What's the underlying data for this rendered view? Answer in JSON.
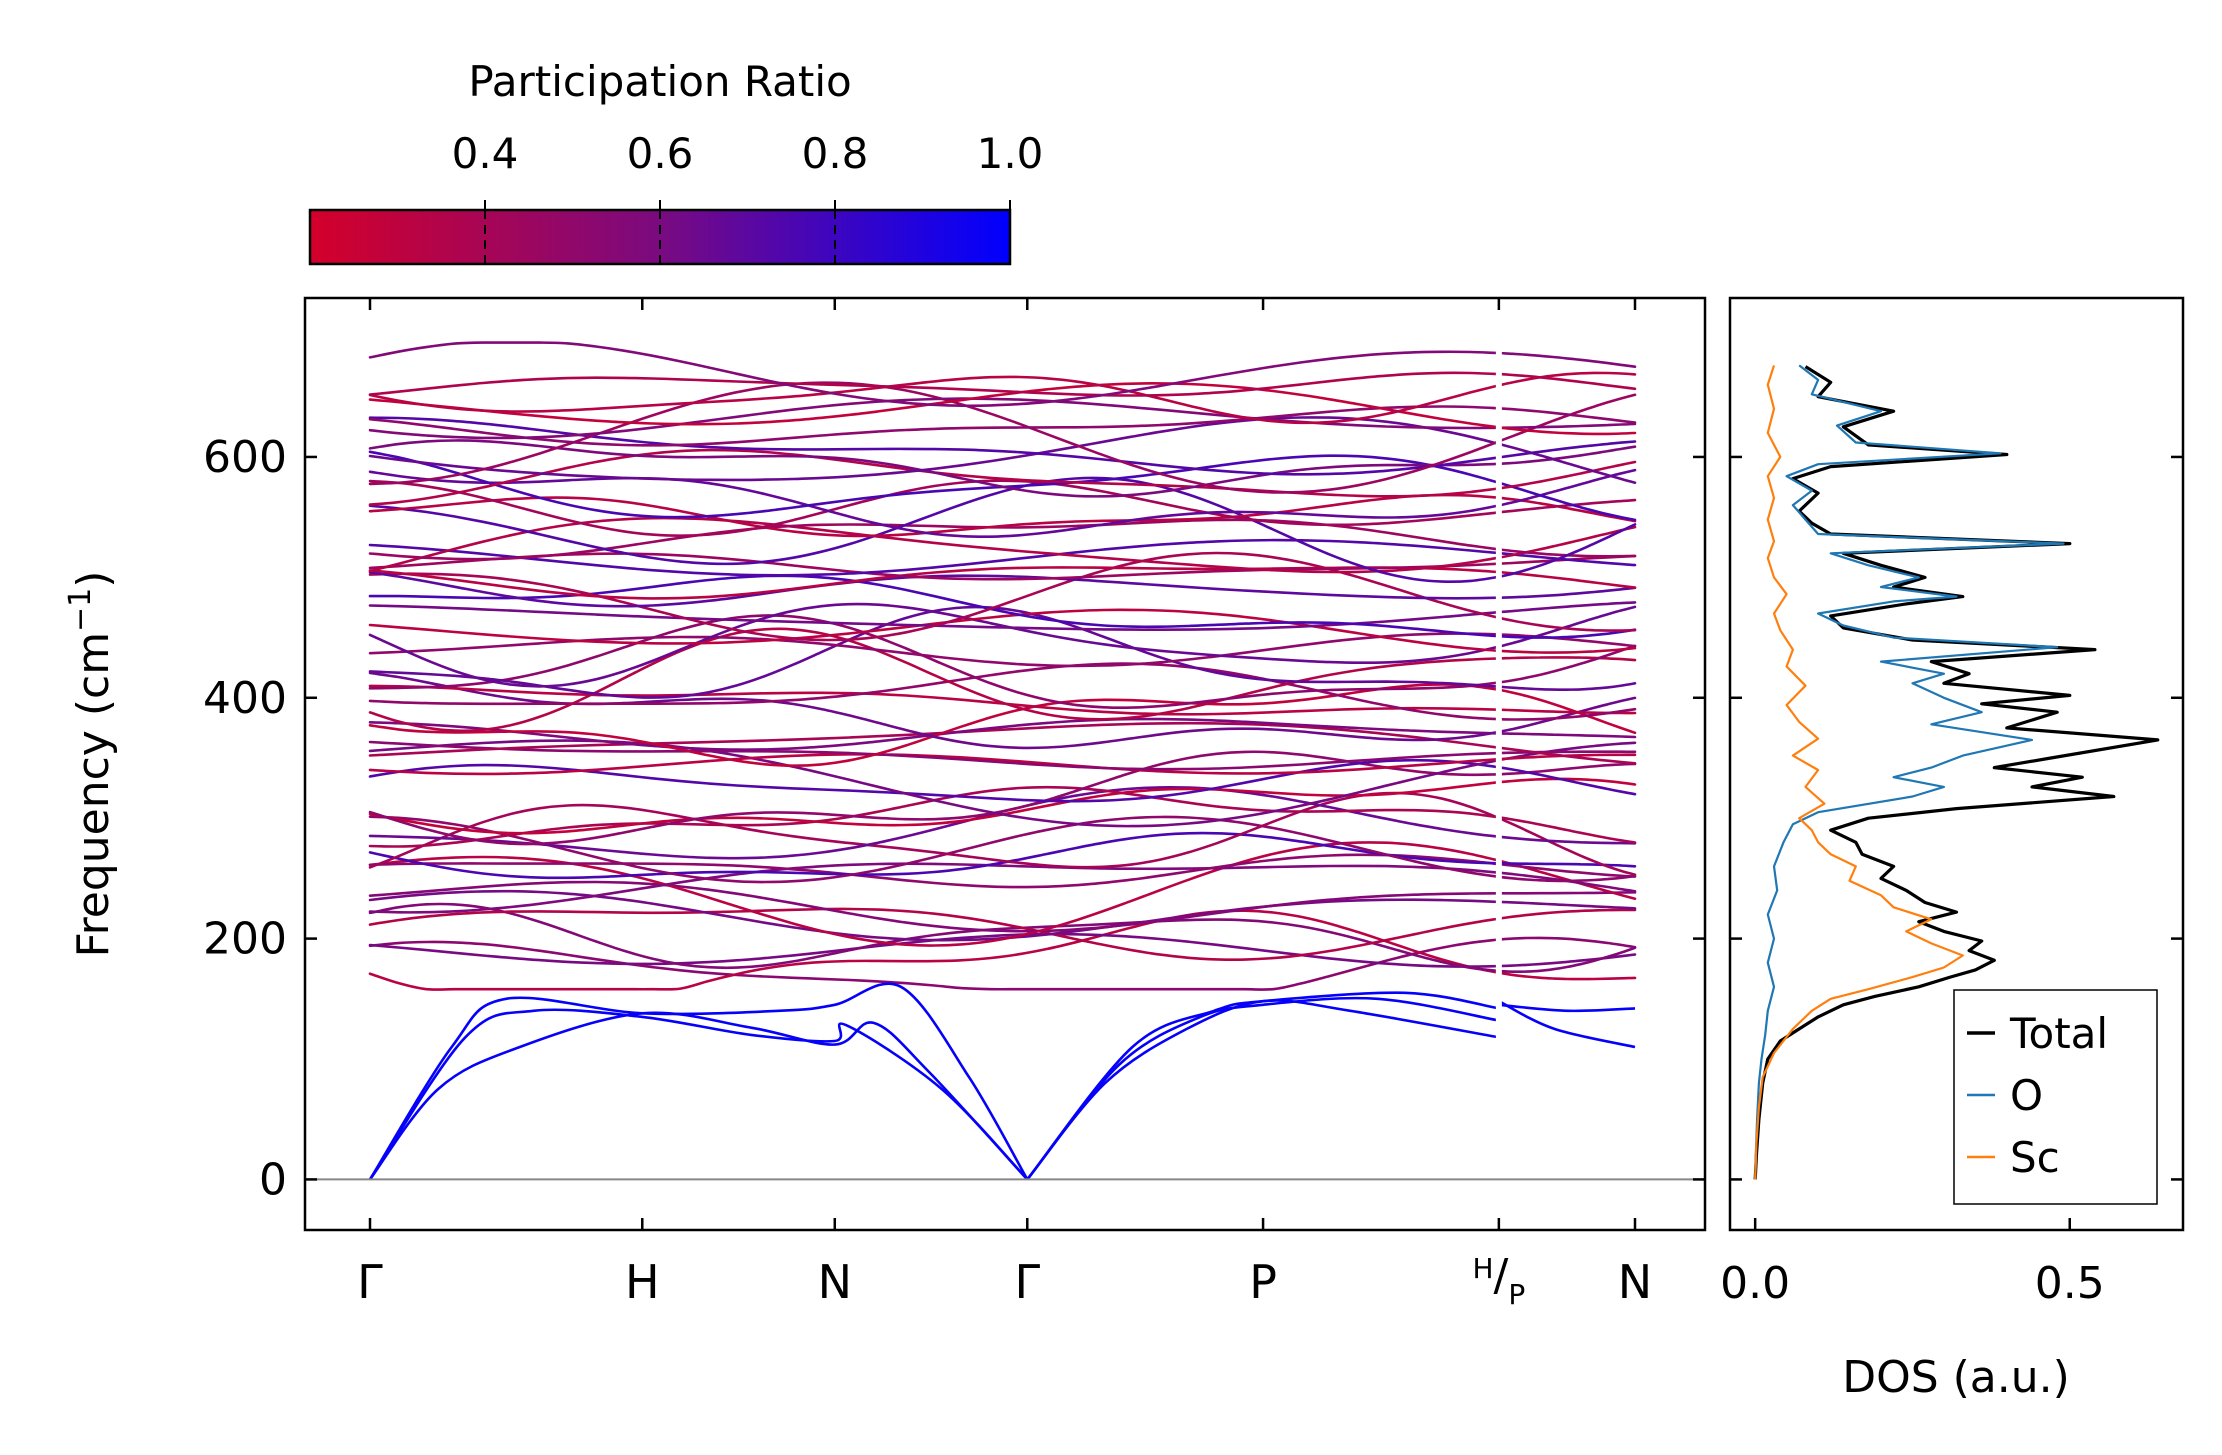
{
  "chart_data": [
    {
      "type": "colorbar",
      "title": "Participation Ratio",
      "range": [
        0.2,
        1.0
      ],
      "ticks": [
        0.4,
        0.6,
        0.8,
        1.0
      ],
      "tick_labels": [
        "0.4",
        "0.6",
        "0.8",
        "1.0"
      ],
      "color_low": "#d4002a",
      "color_mid": "#7a0a80",
      "color_high": "#0000ff"
    },
    {
      "type": "line",
      "title": "Phonon dispersion",
      "ylabel": "Frequency (cm",
      "ylabel_exp": "−1",
      "ylabel_end": ")",
      "ylim": [
        -42,
        732
      ],
      "yticks": [
        0,
        200,
        400,
        600
      ],
      "ytick_labels": [
        "0",
        "200",
        "400",
        "600"
      ],
      "kpoints": [
        {
          "label": "Γ",
          "pos": 0.0
        },
        {
          "label": "H",
          "pos": 1.0
        },
        {
          "label": "N",
          "pos": 1.707
        },
        {
          "label": "Γ",
          "pos": 2.414
        },
        {
          "label": "P",
          "pos": 3.28
        },
        {
          "label": "H/P",
          "label_top": "H",
          "label_bottom": "P",
          "pos": 4.146
        },
        {
          "label": "N",
          "pos": 4.646
        }
      ],
      "acoustic_branches": [
        {
          "name": "acoustic-1",
          "points": [
            [
              0,
              0
            ],
            [
              0.25,
              75
            ],
            [
              0.55,
              110
            ],
            [
              1.0,
              138
            ],
            [
              1.4,
              126
            ],
            [
              1.707,
              112
            ],
            [
              1.85,
              130
            ],
            [
              2.05,
              90
            ],
            [
              2.414,
              0
            ]
          ]
        },
        {
          "name": "acoustic-2",
          "points": [
            [
              0,
              0
            ],
            [
              0.35,
              118
            ],
            [
              0.6,
              140
            ],
            [
              1.0,
              135
            ],
            [
              1.4,
              120
            ],
            [
              1.707,
              115
            ],
            [
              1.75,
              128
            ],
            [
              2.1,
              75
            ],
            [
              2.414,
              0
            ]
          ]
        },
        {
          "name": "acoustic-3",
          "points": [
            [
              0,
              0
            ],
            [
              0.3,
              110
            ],
            [
              0.5,
              150
            ],
            [
              1.0,
              138
            ],
            [
              1.5,
              140
            ],
            [
              1.707,
              145
            ],
            [
              1.95,
              160
            ],
            [
              2.2,
              85
            ],
            [
              2.414,
              0
            ]
          ]
        },
        {
          "name": "acoustic-4",
          "points": [
            [
              2.414,
              0
            ],
            [
              2.7,
              80
            ],
            [
              3.0,
              125
            ],
            [
              3.28,
              148
            ],
            [
              3.6,
              140
            ],
            [
              4.146,
              118
            ]
          ]
        },
        {
          "name": "acoustic-5",
          "points": [
            [
              2.414,
              0
            ],
            [
              2.75,
              95
            ],
            [
              3.05,
              135
            ],
            [
              3.28,
              145
            ],
            [
              3.7,
              150
            ],
            [
              4.146,
              132
            ]
          ]
        },
        {
          "name": "acoustic-6",
          "points": [
            [
              2.414,
              0
            ],
            [
              2.8,
              110
            ],
            [
              3.1,
              140
            ],
            [
              3.28,
              148
            ],
            [
              3.8,
              155
            ],
            [
              4.146,
              142
            ]
          ]
        },
        {
          "name": "acoustic-7",
          "points": [
            [
              4.146,
              148
            ],
            [
              4.35,
              125
            ],
            [
              4.646,
              110
            ]
          ]
        },
        {
          "name": "acoustic-8",
          "points": [
            [
              4.146,
              145
            ],
            [
              4.4,
              140
            ],
            [
              4.646,
              142
            ]
          ]
        }
      ],
      "optical_band": {
        "min": 158,
        "max": 695,
        "count": 58,
        "pr_min": 0.28,
        "pr_max": 0.78
      }
    },
    {
      "type": "line",
      "title": "Density of states",
      "xlabel": "DOS (a.u.)",
      "xlim": [
        -0.04,
        0.68
      ],
      "xticks": [
        0.0,
        0.5
      ],
      "xtick_labels": [
        "0.0",
        "0.5"
      ],
      "ylim": [
        -42,
        732
      ],
      "legend_position": "bottom-right",
      "series": [
        {
          "name": "Total",
          "color": "#000000",
          "points": [
            [
              0,
              0
            ],
            [
              0.002,
              20
            ],
            [
              0.006,
              50
            ],
            [
              0.012,
              80
            ],
            [
              0.02,
              100
            ],
            [
              0.04,
              115
            ],
            [
              0.07,
              125
            ],
            [
              0.1,
              135
            ],
            [
              0.14,
              145
            ],
            [
              0.19,
              152
            ],
            [
              0.26,
              160
            ],
            [
              0.31,
              168
            ],
            [
              0.35,
              174
            ],
            [
              0.38,
              182
            ],
            [
              0.34,
              190
            ],
            [
              0.36,
              198
            ],
            [
              0.3,
              206
            ],
            [
              0.26,
              214
            ],
            [
              0.32,
              222
            ],
            [
              0.27,
              230
            ],
            [
              0.24,
              240
            ],
            [
              0.2,
              250
            ],
            [
              0.22,
              260
            ],
            [
              0.17,
              270
            ],
            [
              0.16,
              280
            ],
            [
              0.12,
              290
            ],
            [
              0.18,
              300
            ],
            [
              0.32,
              308
            ],
            [
              0.57,
              318
            ],
            [
              0.44,
              326
            ],
            [
              0.52,
              334
            ],
            [
              0.38,
              342
            ],
            [
              0.47,
              350
            ],
            [
              0.64,
              365
            ],
            [
              0.4,
              375
            ],
            [
              0.48,
              388
            ],
            [
              0.36,
              395
            ],
            [
              0.5,
              402
            ],
            [
              0.3,
              412
            ],
            [
              0.34,
              420
            ],
            [
              0.28,
              430
            ],
            [
              0.54,
              440
            ],
            [
              0.25,
              448
            ],
            [
              0.14,
              458
            ],
            [
              0.12,
              468
            ],
            [
              0.24,
              478
            ],
            [
              0.33,
              484
            ],
            [
              0.22,
              492
            ],
            [
              0.27,
              500
            ],
            [
              0.2,
              510
            ],
            [
              0.14,
              520
            ],
            [
              0.5,
              528
            ],
            [
              0.12,
              536
            ],
            [
              0.09,
              545
            ],
            [
              0.07,
              555
            ],
            [
              0.1,
              570
            ],
            [
              0.06,
              582
            ],
            [
              0.12,
              592
            ],
            [
              0.4,
              602
            ],
            [
              0.18,
              610
            ],
            [
              0.14,
              625
            ],
            [
              0.22,
              638
            ],
            [
              0.1,
              650
            ],
            [
              0.12,
              662
            ],
            [
              0.08,
              675
            ]
          ]
        },
        {
          "name": "O",
          "color": "#1f77b4",
          "points": [
            [
              0,
              0
            ],
            [
              0.001,
              20
            ],
            [
              0.003,
              50
            ],
            [
              0.006,
              80
            ],
            [
              0.01,
              100
            ],
            [
              0.016,
              120
            ],
            [
              0.02,
              140
            ],
            [
              0.03,
              160
            ],
            [
              0.02,
              180
            ],
            [
              0.03,
              200
            ],
            [
              0.02,
              220
            ],
            [
              0.035,
              240
            ],
            [
              0.03,
              260
            ],
            [
              0.045,
              280
            ],
            [
              0.06,
              295
            ],
            [
              0.1,
              305
            ],
            [
              0.25,
              318
            ],
            [
              0.3,
              326
            ],
            [
              0.22,
              334
            ],
            [
              0.28,
              342
            ],
            [
              0.33,
              352
            ],
            [
              0.44,
              365
            ],
            [
              0.28,
              378
            ],
            [
              0.36,
              388
            ],
            [
              0.3,
              400
            ],
            [
              0.25,
              412
            ],
            [
              0.3,
              420
            ],
            [
              0.2,
              430
            ],
            [
              0.48,
              442
            ],
            [
              0.22,
              450
            ],
            [
              0.14,
              460
            ],
            [
              0.1,
              470
            ],
            [
              0.22,
              480
            ],
            [
              0.32,
              484
            ],
            [
              0.2,
              492
            ],
            [
              0.26,
              500
            ],
            [
              0.18,
              510
            ],
            [
              0.12,
              520
            ],
            [
              0.49,
              528
            ],
            [
              0.1,
              536
            ],
            [
              0.08,
              548
            ],
            [
              0.06,
              560
            ],
            [
              0.09,
              572
            ],
            [
              0.05,
              584
            ],
            [
              0.1,
              594
            ],
            [
              0.39,
              603
            ],
            [
              0.16,
              612
            ],
            [
              0.13,
              626
            ],
            [
              0.2,
              638
            ],
            [
              0.09,
              652
            ],
            [
              0.1,
              664
            ],
            [
              0.07,
              676
            ]
          ]
        },
        {
          "name": "Sc",
          "color": "#ff7f0e",
          "points": [
            [
              0,
              0
            ],
            [
              0.002,
              30
            ],
            [
              0.006,
              60
            ],
            [
              0.012,
              85
            ],
            [
              0.03,
              105
            ],
            [
              0.06,
              125
            ],
            [
              0.09,
              140
            ],
            [
              0.12,
              150
            ],
            [
              0.18,
              158
            ],
            [
              0.25,
              168
            ],
            [
              0.3,
              176
            ],
            [
              0.33,
              186
            ],
            [
              0.28,
              196
            ],
            [
              0.24,
              206
            ],
            [
              0.28,
              216
            ],
            [
              0.22,
              226
            ],
            [
              0.2,
              236
            ],
            [
              0.15,
              248
            ],
            [
              0.16,
              260
            ],
            [
              0.12,
              270
            ],
            [
              0.1,
              280
            ],
            [
              0.09,
              290
            ],
            [
              0.07,
              300
            ],
            [
              0.11,
              312
            ],
            [
              0.08,
              326
            ],
            [
              0.1,
              340
            ],
            [
              0.06,
              352
            ],
            [
              0.1,
              366
            ],
            [
              0.07,
              380
            ],
            [
              0.05,
              394
            ],
            [
              0.08,
              410
            ],
            [
              0.05,
              426
            ],
            [
              0.06,
              440
            ],
            [
              0.04,
              456
            ],
            [
              0.03,
              470
            ],
            [
              0.05,
              486
            ],
            [
              0.03,
              500
            ],
            [
              0.02,
              516
            ],
            [
              0.03,
              530
            ],
            [
              0.02,
              548
            ],
            [
              0.03,
              566
            ],
            [
              0.02,
              584
            ],
            [
              0.04,
              600
            ],
            [
              0.02,
              620
            ],
            [
              0.03,
              640
            ],
            [
              0.02,
              660
            ],
            [
              0.03,
              676
            ]
          ]
        }
      ]
    }
  ]
}
